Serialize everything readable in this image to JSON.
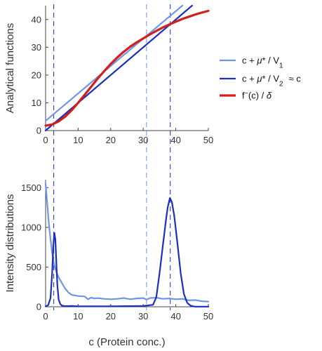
{
  "colors": {
    "light_blue": "#6f95e8",
    "dark_blue": "#1a2fc2",
    "red": "#d21f1b",
    "axis": "#444444"
  },
  "chart_data": [
    {
      "type": "line",
      "ylabel": "Analytical functions",
      "xlim": [
        0,
        50
      ],
      "ylim": [
        0,
        45
      ],
      "xticks": [
        0,
        10,
        20,
        30,
        40,
        50
      ],
      "yticks": [
        0,
        10,
        20,
        30,
        40
      ],
      "grid": false,
      "legend_position": "right",
      "series": [
        {
          "name": "c + μ* / V₁",
          "legend": {
            "main": "c + ",
            "mu": "μ",
            "tail": "* / V",
            "sub": "1",
            "extra": ""
          },
          "color": "#6f95e8",
          "x": [
            0,
            42
          ],
          "y": [
            3.5,
            45
          ]
        },
        {
          "name": "c + μ* / V₂ ≈ c",
          "legend": {
            "main": "c + ",
            "mu": "μ",
            "tail": "* / V",
            "sub": "2",
            "extra": "≈  c"
          },
          "color": "#1a2fc2",
          "x": [
            0,
            45
          ],
          "y": [
            0,
            45
          ]
        },
        {
          "name": "f⁻(c) / δ",
          "legend": {
            "main": "f",
            "sup": "−",
            "tail": "(c) / ",
            "delta": "δ"
          },
          "color": "#d21f1b",
          "x": [
            0,
            2,
            4,
            6,
            8,
            10,
            12,
            14,
            16,
            18,
            20,
            22,
            24,
            26,
            28,
            30,
            32,
            34,
            36,
            38,
            40,
            42,
            44,
            46,
            48,
            50
          ],
          "y": [
            1.8,
            2.2,
            3.3,
            5.0,
            7.3,
            10.0,
            12.9,
            15.8,
            18.7,
            21.4,
            24.0,
            26.3,
            28.4,
            30.2,
            31.8,
            33.2,
            34.6,
            35.9,
            37.1,
            38.2,
            39.2,
            40.2,
            41.0,
            41.8,
            42.5,
            43.1
          ]
        }
      ],
      "vlines": [
        {
          "x": 2.5,
          "color": "#1a2fc2"
        },
        {
          "x": 31,
          "color": "#6f95e8"
        },
        {
          "x": 38.3,
          "color": "#1a2fc2"
        }
      ]
    },
    {
      "type": "line",
      "xlabel": "c (Protein conc.)",
      "ylabel": "Intensity distributions",
      "xlim": [
        0,
        50
      ],
      "ylim": [
        0,
        1600
      ],
      "xticks": [
        0,
        10,
        20,
        30,
        40,
        50
      ],
      "yticks": [
        0,
        500,
        1000,
        1500
      ],
      "grid": false,
      "series": [
        {
          "color": "#6f95e8",
          "x": [
            0,
            0.5,
            1,
            1.5,
            2,
            2.5,
            3,
            3.5,
            4,
            5,
            6,
            7,
            8,
            10,
            12,
            13,
            14,
            15,
            16,
            18,
            20,
            22,
            24,
            26,
            28,
            30,
            31,
            32,
            34,
            36,
            38,
            40,
            42,
            44,
            46,
            48,
            50
          ],
          "y": [
            1550,
            1300,
            1050,
            850,
            680,
            560,
            480,
            420,
            370,
            300,
            230,
            180,
            150,
            135,
            130,
            95,
            115,
            105,
            110,
            100,
            95,
            100,
            110,
            95,
            105,
            110,
            90,
            110,
            115,
            100,
            105,
            95,
            100,
            80,
            85,
            70,
            65
          ]
        },
        {
          "color": "#1a2fc2",
          "x": [
            0,
            0.8,
            1.5,
            2.0,
            2.4,
            2.7,
            3.0,
            3.3,
            3.6,
            4,
            4.5,
            5,
            6,
            8,
            10,
            15,
            20,
            25,
            30,
            33,
            34,
            35,
            36,
            37,
            37.5,
            38.2,
            38.8,
            39.5,
            40.5,
            41.5,
            42.5,
            43.5,
            44.5,
            45.5,
            46,
            50
          ],
          "y": [
            5,
            20,
            110,
            420,
            780,
            930,
            850,
            560,
            280,
            90,
            35,
            15,
            8,
            10,
            5,
            6,
            5,
            8,
            10,
            25,
            120,
            420,
            760,
            1100,
            1250,
            1370,
            1320,
            1150,
            800,
            420,
            160,
            50,
            15,
            5,
            2,
            2
          ]
        }
      ],
      "vlines": [
        {
          "x": 2.5,
          "color": "#1a2fc2"
        },
        {
          "x": 31,
          "color": "#6f95e8"
        },
        {
          "x": 38.3,
          "color": "#1a2fc2"
        }
      ]
    }
  ]
}
